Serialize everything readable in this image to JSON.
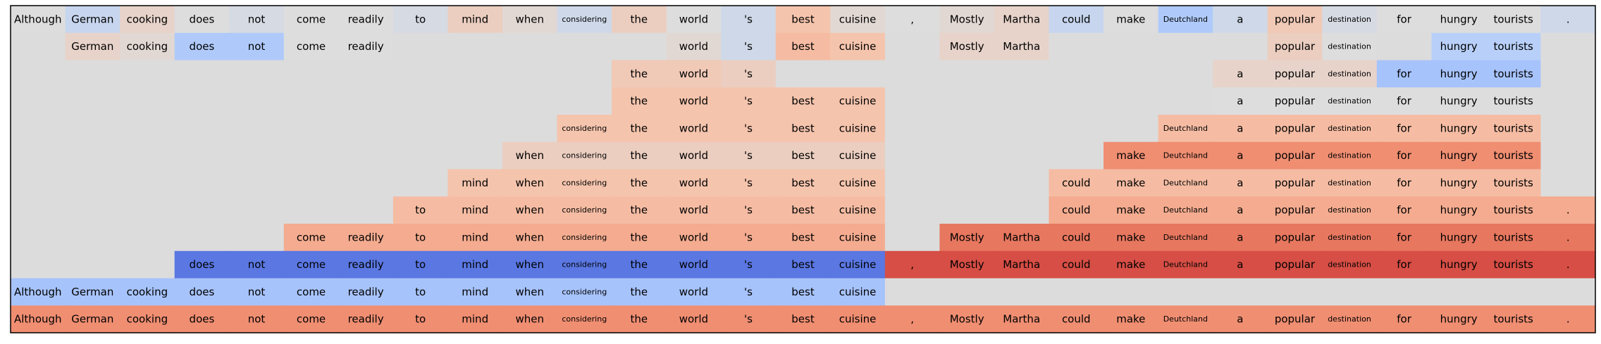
{
  "chart_data": {
    "type": "heatmap",
    "title": "",
    "xlabel": "",
    "ylabel": "",
    "grid": false,
    "legend": "none",
    "tokens": [
      "Although",
      "German",
      "cooking",
      "does",
      "not",
      "come",
      "readily",
      "to",
      "mind",
      "when",
      "considering",
      "the",
      "world",
      "'s",
      "best",
      "cuisine",
      ",",
      "Mostly",
      "Martha",
      "could",
      "make",
      "Deutchland",
      "a",
      "popular",
      "destination",
      "for",
      "hungry",
      "tourists",
      "."
    ],
    "small_tokens": [
      "considering",
      "Deutchland",
      "destination"
    ],
    "colormap": "coolwarm",
    "value_range": [
      -1,
      1
    ],
    "no_value_color": "#dcdcdc",
    "rows": [
      {
        "label": [
          null,
          1,
          1,
          1,
          1,
          1,
          1,
          1,
          1,
          1,
          1,
          1,
          1,
          1,
          1,
          1,
          1,
          1,
          1,
          1,
          1,
          1,
          1,
          1,
          1,
          1,
          1,
          1,
          1
        ],
        "values": [
          0.0,
          -0.15,
          0.1,
          0.0,
          -0.05,
          0.0,
          0.0,
          -0.05,
          0.15,
          0.05,
          -0.1,
          0.15,
          0.0,
          -0.1,
          0.25,
          0.05,
          0.0,
          0.05,
          0.1,
          -0.15,
          0.0,
          -0.3,
          -0.1,
          0.2,
          -0.05,
          0.0,
          0.0,
          0.0,
          -0.1
        ]
      },
      {
        "label": [
          0,
          1,
          1,
          1,
          1,
          1,
          1,
          0,
          0,
          0,
          0,
          0,
          1,
          1,
          1,
          1,
          0,
          1,
          1,
          0,
          0,
          0,
          0,
          1,
          1,
          0,
          1,
          1,
          0
        ],
        "values": [
          null,
          0.1,
          0.05,
          -0.3,
          -0.3,
          0.0,
          0.0,
          null,
          null,
          null,
          null,
          null,
          0.05,
          -0.1,
          0.3,
          0.25,
          null,
          0.1,
          0.1,
          null,
          null,
          null,
          null,
          0.15,
          0.0,
          null,
          -0.25,
          -0.25,
          null
        ]
      },
      {
        "label": [
          0,
          0,
          0,
          0,
          0,
          0,
          0,
          0,
          0,
          0,
          0,
          1,
          1,
          1,
          0,
          0,
          0,
          0,
          0,
          0,
          0,
          0,
          1,
          1,
          1,
          1,
          1,
          1,
          0
        ],
        "values": [
          null,
          null,
          null,
          null,
          null,
          null,
          null,
          null,
          null,
          null,
          null,
          0.2,
          0.2,
          0.15,
          null,
          null,
          null,
          null,
          null,
          null,
          null,
          null,
          0.1,
          0.1,
          0.1,
          -0.35,
          -0.35,
          -0.35,
          null
        ]
      },
      {
        "label": [
          0,
          0,
          0,
          0,
          0,
          0,
          0,
          0,
          0,
          0,
          0,
          1,
          1,
          1,
          1,
          1,
          0,
          0,
          0,
          0,
          0,
          0,
          1,
          1,
          1,
          1,
          1,
          1,
          0
        ],
        "values": [
          null,
          null,
          null,
          null,
          null,
          null,
          null,
          null,
          null,
          null,
          null,
          0.25,
          0.25,
          0.25,
          0.25,
          0.25,
          null,
          null,
          null,
          null,
          null,
          null,
          0.0,
          0.0,
          0.0,
          0.0,
          0.0,
          0.0,
          null
        ]
      },
      {
        "label": [
          0,
          0,
          0,
          0,
          0,
          0,
          0,
          0,
          0,
          0,
          1,
          1,
          1,
          1,
          1,
          1,
          0,
          0,
          0,
          0,
          0,
          1,
          1,
          1,
          1,
          1,
          1,
          1,
          0
        ],
        "values": [
          null,
          null,
          null,
          null,
          null,
          null,
          null,
          null,
          null,
          null,
          0.25,
          0.25,
          0.25,
          0.25,
          0.25,
          0.25,
          null,
          null,
          null,
          null,
          null,
          0.3,
          0.3,
          0.3,
          0.3,
          0.3,
          0.3,
          0.3,
          null
        ]
      },
      {
        "label": [
          0,
          0,
          0,
          0,
          0,
          0,
          0,
          0,
          0,
          1,
          1,
          1,
          1,
          1,
          1,
          1,
          0,
          0,
          0,
          0,
          1,
          1,
          1,
          1,
          1,
          1,
          1,
          1,
          0
        ],
        "values": [
          null,
          null,
          null,
          null,
          null,
          null,
          null,
          null,
          null,
          0.15,
          0.15,
          0.15,
          0.15,
          0.15,
          0.15,
          0.15,
          null,
          null,
          null,
          null,
          0.55,
          0.55,
          0.55,
          0.55,
          0.55,
          0.55,
          0.55,
          0.55,
          null
        ]
      },
      {
        "label": [
          0,
          0,
          0,
          0,
          0,
          0,
          0,
          0,
          1,
          1,
          1,
          1,
          1,
          1,
          1,
          1,
          0,
          0,
          0,
          1,
          1,
          1,
          1,
          1,
          1,
          1,
          1,
          1,
          0
        ],
        "values": [
          null,
          null,
          null,
          null,
          null,
          null,
          null,
          null,
          0.25,
          0.25,
          0.25,
          0.25,
          0.25,
          0.25,
          0.25,
          0.25,
          null,
          null,
          null,
          0.3,
          0.3,
          0.3,
          0.3,
          0.3,
          0.3,
          0.3,
          0.3,
          0.3,
          null
        ]
      },
      {
        "label": [
          0,
          0,
          0,
          0,
          0,
          0,
          0,
          1,
          1,
          1,
          1,
          1,
          1,
          1,
          1,
          1,
          0,
          0,
          0,
          1,
          1,
          1,
          1,
          1,
          1,
          1,
          1,
          1,
          1
        ],
        "values": [
          null,
          null,
          null,
          null,
          null,
          null,
          null,
          0.3,
          0.3,
          0.3,
          0.3,
          0.3,
          0.3,
          0.3,
          0.3,
          0.3,
          null,
          null,
          null,
          0.4,
          0.4,
          0.4,
          0.4,
          0.4,
          0.4,
          0.4,
          0.4,
          0.4,
          0.4
        ]
      },
      {
        "label": [
          0,
          0,
          0,
          0,
          0,
          1,
          1,
          1,
          1,
          1,
          1,
          1,
          1,
          1,
          1,
          1,
          0,
          1,
          1,
          1,
          1,
          1,
          1,
          1,
          1,
          1,
          1,
          1,
          1
        ],
        "values": [
          null,
          null,
          null,
          null,
          null,
          0.4,
          0.4,
          0.4,
          0.4,
          0.4,
          0.4,
          0.4,
          0.4,
          0.4,
          0.4,
          0.4,
          null,
          0.65,
          0.65,
          0.65,
          0.65,
          0.65,
          0.65,
          0.65,
          0.65,
          0.65,
          0.65,
          0.65,
          0.65
        ]
      },
      {
        "label": [
          0,
          0,
          0,
          1,
          1,
          1,
          1,
          1,
          1,
          1,
          1,
          1,
          1,
          1,
          1,
          1,
          1,
          1,
          1,
          1,
          1,
          1,
          1,
          1,
          1,
          1,
          1,
          1,
          1
        ],
        "values": [
          null,
          null,
          null,
          -0.8,
          -0.8,
          -0.8,
          -0.8,
          -0.8,
          -0.8,
          -0.8,
          -0.8,
          -0.8,
          -0.8,
          -0.8,
          -0.8,
          -0.8,
          0.8,
          0.8,
          0.8,
          0.8,
          0.8,
          0.8,
          0.8,
          0.8,
          0.8,
          0.8,
          0.8,
          0.8,
          0.8
        ]
      },
      {
        "label": [
          1,
          1,
          1,
          1,
          1,
          1,
          1,
          1,
          1,
          1,
          1,
          1,
          1,
          1,
          1,
          1,
          0,
          0,
          0,
          0,
          0,
          0,
          0,
          0,
          0,
          0,
          0,
          0,
          0
        ],
        "values": [
          -0.35,
          -0.35,
          -0.35,
          -0.35,
          -0.35,
          -0.35,
          -0.35,
          -0.35,
          -0.35,
          -0.35,
          -0.35,
          -0.35,
          -0.35,
          -0.35,
          -0.35,
          -0.35,
          null,
          null,
          null,
          null,
          null,
          null,
          null,
          null,
          null,
          null,
          null,
          null,
          null
        ]
      },
      {
        "label": [
          1,
          1,
          1,
          1,
          1,
          1,
          1,
          1,
          1,
          1,
          1,
          1,
          1,
          1,
          1,
          1,
          1,
          1,
          1,
          1,
          1,
          1,
          1,
          1,
          1,
          1,
          1,
          1,
          1
        ],
        "values": [
          0.55,
          0.55,
          0.55,
          0.55,
          0.55,
          0.55,
          0.55,
          0.55,
          0.55,
          0.55,
          0.55,
          0.55,
          0.55,
          0.55,
          0.55,
          0.55,
          0.55,
          0.55,
          0.55,
          0.55,
          0.55,
          0.55,
          0.55,
          0.55,
          0.55,
          0.55,
          0.55,
          0.55,
          0.55
        ]
      }
    ]
  }
}
